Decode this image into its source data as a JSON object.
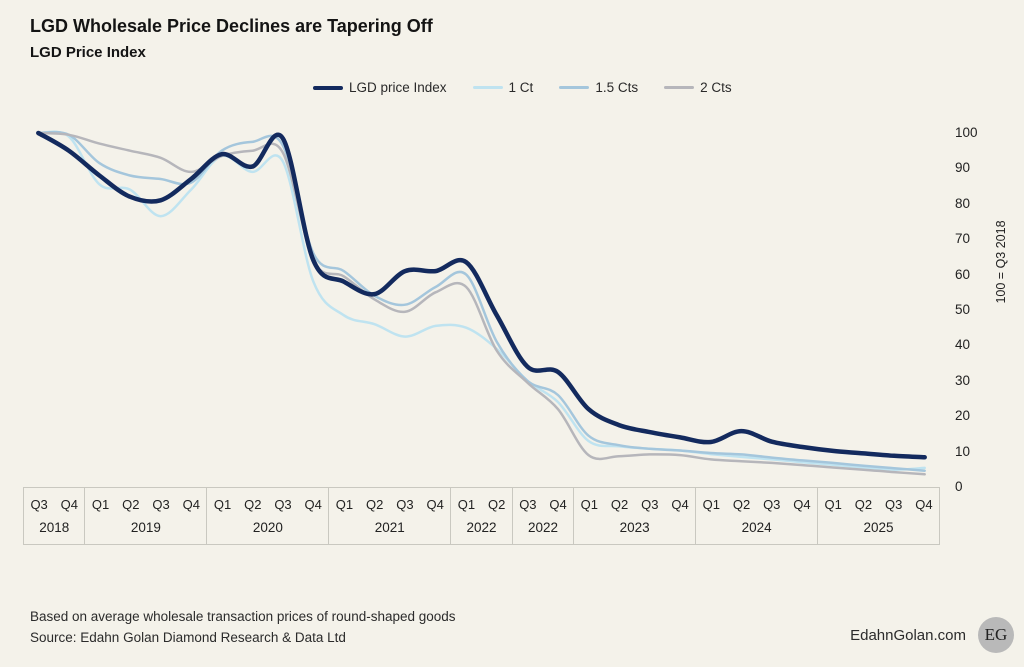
{
  "header": {
    "title": "LGD Wholesale Price Declines are Tapering Off",
    "subtitle": "LGD Price Index"
  },
  "chart_data": {
    "type": "line",
    "title": "LGD Wholesale Price Declines are Tapering Off",
    "subtitle": "LGD Price Index",
    "grid": false,
    "legend_position": "top",
    "ylim": [
      0,
      100
    ],
    "y_ticks": [
      100,
      90,
      80,
      70,
      60,
      50,
      40,
      30,
      20,
      10,
      0
    ],
    "y_axis_label": "100 = Q3 2018",
    "x_labels": [
      "Q3 2018",
      "Q4 2018",
      "Q1 2019",
      "Q2 2019",
      "Q3 2019",
      "Q4 2019",
      "Q1 2020",
      "Q2 2020",
      "Q3 2020",
      "Q4 2020",
      "Q1 2021",
      "Q2 2021",
      "Q3 2021",
      "Q4 2021",
      "Q1 2022",
      "Q2 2022",
      "Q3 2022",
      "Q4 2022",
      "Q1 2023",
      "Q2 2023",
      "Q3 2023",
      "Q4 2023",
      "Q1 2024",
      "Q2 2024",
      "Q3 2024",
      "Q4 2024",
      "Q1 2025",
      "Q2 2025",
      "Q3 2025",
      "Q4 2025"
    ],
    "x_groups": [
      {
        "year": "2018",
        "quarters": [
          "Q3",
          "Q4"
        ]
      },
      {
        "year": "2019",
        "quarters": [
          "Q1",
          "Q2",
          "Q3",
          "Q4"
        ]
      },
      {
        "year": "2020",
        "quarters": [
          "Q1",
          "Q2",
          "Q3",
          "Q4"
        ]
      },
      {
        "year": "2021",
        "quarters": [
          "Q1",
          "Q2",
          "Q3",
          "Q4"
        ]
      },
      {
        "year": "2022",
        "quarters": [
          "Q1",
          "Q2"
        ]
      },
      {
        "year": "2022",
        "quarters": [
          "Q3",
          "Q4"
        ]
      },
      {
        "year": "2023",
        "quarters": [
          "Q1",
          "Q2",
          "Q3",
          "Q4"
        ]
      },
      {
        "year": "2024",
        "quarters": [
          "Q1",
          "Q2",
          "Q3",
          "Q4"
        ]
      },
      {
        "year": "2025",
        "quarters": [
          "Q1",
          "Q2",
          "Q3",
          "Q4"
        ]
      }
    ],
    "series": [
      {
        "name": "LGD price Index",
        "color": "#132a5e",
        "stroke_width": 4.5,
        "values": [
          100,
          95,
          88,
          82,
          81,
          87,
          94,
          90.5,
          98.5,
          64,
          58,
          54.5,
          61,
          61,
          63.5,
          48.5,
          34,
          32.5,
          22,
          17.5,
          15.5,
          14,
          12.7,
          15.8,
          12.8,
          11.3,
          10.2,
          9.5,
          8.8,
          8.4
        ]
      },
      {
        "name": "1 Ct",
        "color": "#bfe3f0",
        "stroke_width": 2.5,
        "values": [
          100,
          99,
          85.5,
          84,
          76.5,
          84,
          93.5,
          89,
          92,
          58,
          48.5,
          46,
          42.5,
          45.5,
          45,
          39,
          30,
          24,
          13,
          11.5,
          10.8,
          10.3,
          9.3,
          8.5,
          7.8,
          7,
          6.3,
          5.5,
          4.9,
          5.4
        ]
      },
      {
        "name": "1.5 Cts",
        "color": "#a4c6dc",
        "stroke_width": 2.5,
        "values": [
          100,
          99.5,
          91.5,
          88,
          87,
          86,
          95,
          97.5,
          96.5,
          66,
          61,
          54,
          51.5,
          56.5,
          60,
          41,
          30,
          26,
          14.5,
          11.8,
          10.8,
          10.3,
          9.6,
          9.2,
          8.3,
          7.5,
          6.8,
          6,
          5.3,
          4.6
        ]
      },
      {
        "name": "2 Cts",
        "color": "#b6b6bb",
        "stroke_width": 2.5,
        "values": [
          100,
          99.5,
          97,
          95,
          93,
          89,
          93.5,
          95,
          94.5,
          64,
          59.5,
          53,
          49.5,
          55,
          56.5,
          38.5,
          29.5,
          22,
          9,
          8.7,
          9.2,
          9,
          7.8,
          7.3,
          6.8,
          6.2,
          5.5,
          4.9,
          4.2,
          3.6
        ]
      }
    ]
  },
  "footer": {
    "note": "Based on average wholesale transaction prices of round-shaped goods",
    "source": "Source: Edahn Golan Diamond Research & Data Ltd",
    "website": "EdahnGolan.com",
    "logo_text": "EG"
  },
  "colors": {
    "background": "#f4f2ea",
    "axis_border": "#c9c8c0",
    "logo_circle": "#b9b9b9"
  }
}
